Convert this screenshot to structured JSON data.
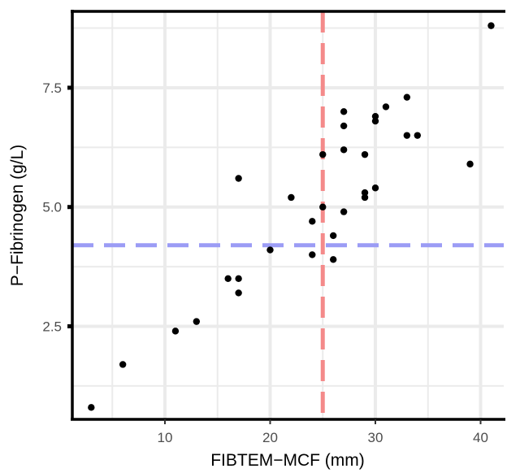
{
  "chart_data": {
    "type": "scatter",
    "xlabel": "FIBTEM−MCF (mm)",
    "ylabel": "P−Fibrinogen (g/L)",
    "xlim": [
      1.2,
      42.2
    ],
    "ylim": [
      0.55,
      9.1
    ],
    "x_ticks": [
      10,
      20,
      30,
      40
    ],
    "x_tick_labels": [
      "10",
      "20",
      "30",
      "40"
    ],
    "y_ticks": [
      2.5,
      5.0,
      7.5
    ],
    "y_tick_labels": [
      "2.5",
      "5.0",
      "7.5"
    ],
    "x_minor_grid": [
      5,
      15,
      25,
      35
    ],
    "y_minor_grid": [
      1.25,
      3.75,
      6.25,
      8.75
    ],
    "grid": true,
    "legend": "none",
    "reference_lines": [
      {
        "orientation": "vertical",
        "value": 25,
        "color": "#f48a8a",
        "style": "dashed"
      },
      {
        "orientation": "horizontal",
        "value": 4.2,
        "color": "#9b9cf5",
        "style": "dashed"
      }
    ],
    "point_color": "#000000",
    "points": [
      {
        "x": 3,
        "y": 0.8
      },
      {
        "x": 6,
        "y": 1.7
      },
      {
        "x": 11,
        "y": 2.4
      },
      {
        "x": 13,
        "y": 2.6
      },
      {
        "x": 16,
        "y": 3.5
      },
      {
        "x": 17,
        "y": 3.5
      },
      {
        "x": 17,
        "y": 3.2
      },
      {
        "x": 17,
        "y": 5.6
      },
      {
        "x": 20,
        "y": 4.1
      },
      {
        "x": 22,
        "y": 5.2
      },
      {
        "x": 24,
        "y": 4.7
      },
      {
        "x": 24,
        "y": 4.0
      },
      {
        "x": 25,
        "y": 5.0
      },
      {
        "x": 25,
        "y": 6.1
      },
      {
        "x": 26,
        "y": 4.4
      },
      {
        "x": 26,
        "y": 3.9
      },
      {
        "x": 27,
        "y": 4.9
      },
      {
        "x": 27,
        "y": 6.2
      },
      {
        "x": 27,
        "y": 6.7
      },
      {
        "x": 27,
        "y": 7.0
      },
      {
        "x": 29,
        "y": 5.2
      },
      {
        "x": 29,
        "y": 5.3
      },
      {
        "x": 29,
        "y": 6.1
      },
      {
        "x": 30,
        "y": 5.4
      },
      {
        "x": 30,
        "y": 6.8
      },
      {
        "x": 30,
        "y": 6.9
      },
      {
        "x": 31,
        "y": 7.1
      },
      {
        "x": 33,
        "y": 6.5
      },
      {
        "x": 33,
        "y": 7.3
      },
      {
        "x": 34,
        "y": 6.5
      },
      {
        "x": 39,
        "y": 5.9
      },
      {
        "x": 41,
        "y": 8.8
      }
    ]
  }
}
